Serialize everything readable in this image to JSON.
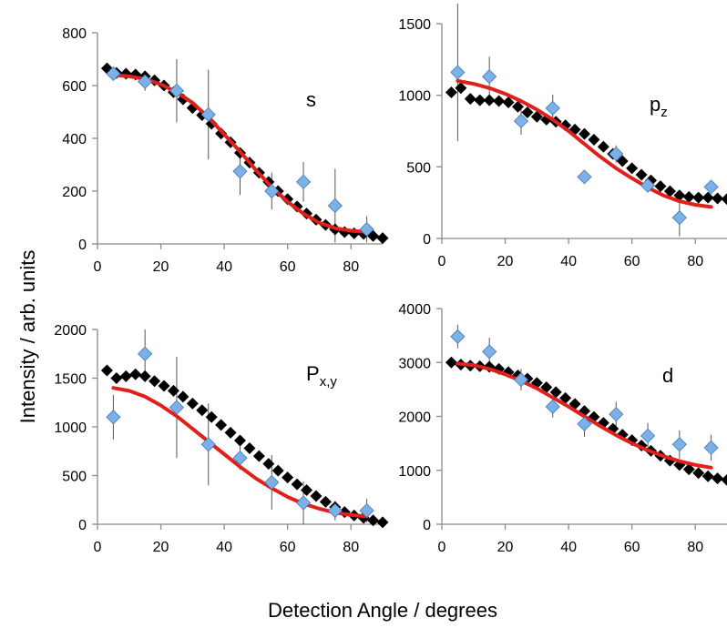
{
  "figure": {
    "ylabel": "Intensity / arb. units",
    "xlabel": "Detection Angle / degrees"
  },
  "colors": {
    "theory_black": "#000000",
    "fit_red": "#e0201a",
    "experiment_blue": "#7bb1e6",
    "experiment_blue_edge": "#3f78b5",
    "axis": "#8a8a8a"
  },
  "chart_data": [
    {
      "type": "scatter",
      "panel_label": {
        "main": "s",
        "sub": ""
      },
      "xlim": [
        0,
        90
      ],
      "ylim": [
        0,
        800
      ],
      "xticks": [
        0,
        20,
        40,
        60,
        80
      ],
      "yticks": [
        0,
        200,
        400,
        600,
        800
      ],
      "grid": false,
      "series": [
        {
          "kind": "black-diamonds",
          "x": [
            3,
            6,
            9,
            12,
            15,
            18,
            21,
            24,
            27,
            30,
            33,
            36,
            39,
            42,
            45,
            48,
            51,
            54,
            57,
            60,
            63,
            66,
            69,
            72,
            75,
            78,
            81,
            84,
            87,
            90
          ],
          "y": [
            665,
            648,
            645,
            642,
            635,
            620,
            600,
            575,
            548,
            515,
            488,
            455,
            418,
            385,
            345,
            308,
            270,
            235,
            200,
            170,
            142,
            115,
            92,
            72,
            55,
            45,
            40,
            38,
            30,
            22
          ]
        },
        {
          "kind": "red-line",
          "x": [
            5,
            10,
            15,
            20,
            25,
            30,
            35,
            40,
            45,
            50,
            55,
            60,
            65,
            70,
            75,
            80,
            85
          ],
          "y": [
            640,
            635,
            625,
            605,
            575,
            535,
            480,
            415,
            350,
            280,
            215,
            160,
            115,
            80,
            60,
            50,
            45
          ]
        },
        {
          "kind": "blue-diamonds-with-error",
          "x": [
            5,
            15,
            25,
            35,
            45,
            55,
            65,
            75,
            85
          ],
          "y": [
            645,
            615,
            580,
            490,
            275,
            200,
            235,
            145,
            55
          ],
          "err": [
            20,
            35,
            120,
            170,
            90,
            70,
            75,
            140,
            50
          ]
        }
      ]
    },
    {
      "type": "scatter",
      "panel_label": {
        "main": "p",
        "sub": "z"
      },
      "xlim": [
        0,
        90
      ],
      "ylim": [
        0,
        1500
      ],
      "xticks": [
        0,
        20,
        40,
        60,
        80
      ],
      "yticks": [
        0,
        500,
        1000,
        1500
      ],
      "grid": false,
      "series": [
        {
          "kind": "black-diamonds",
          "x": [
            3,
            6,
            9,
            12,
            15,
            18,
            21,
            24,
            27,
            30,
            33,
            36,
            39,
            42,
            45,
            48,
            51,
            54,
            57,
            60,
            63,
            66,
            69,
            72,
            75,
            78,
            81,
            84,
            87,
            90
          ],
          "y": [
            1020,
            1050,
            975,
            965,
            965,
            960,
            950,
            920,
            880,
            850,
            830,
            815,
            790,
            760,
            730,
            690,
            640,
            590,
            540,
            490,
            445,
            405,
            365,
            330,
            300,
            290,
            285,
            285,
            280,
            275
          ]
        },
        {
          "kind": "red-line",
          "x": [
            5,
            10,
            15,
            20,
            25,
            30,
            35,
            40,
            45,
            50,
            55,
            60,
            65,
            70,
            75,
            80,
            85
          ],
          "y": [
            1100,
            1080,
            1050,
            1010,
            960,
            900,
            830,
            750,
            660,
            570,
            490,
            420,
            355,
            300,
            260,
            235,
            220
          ]
        },
        {
          "kind": "blue-diamonds-with-error",
          "x": [
            5,
            15,
            25,
            35,
            45,
            55,
            65,
            75,
            85
          ],
          "y": [
            1160,
            1130,
            820,
            910,
            430,
            590,
            370,
            145,
            360
          ],
          "err": [
            480,
            140,
            95,
            95,
            40,
            60,
            45,
            130,
            40
          ]
        }
      ]
    },
    {
      "type": "scatter",
      "panel_label": {
        "main": "P",
        "sub": "x,y"
      },
      "xlim": [
        0,
        90
      ],
      "ylim": [
        0,
        2000
      ],
      "xticks": [
        0,
        20,
        40,
        60,
        80
      ],
      "yticks": [
        0,
        500,
        1000,
        1500,
        2000
      ],
      "grid": false,
      "series": [
        {
          "kind": "black-diamonds",
          "x": [
            3,
            6,
            9,
            12,
            15,
            18,
            21,
            24,
            27,
            30,
            33,
            36,
            39,
            42,
            45,
            48,
            51,
            54,
            57,
            60,
            63,
            66,
            69,
            72,
            75,
            78,
            81,
            84,
            87,
            90
          ],
          "y": [
            1580,
            1500,
            1520,
            1540,
            1520,
            1470,
            1420,
            1370,
            1310,
            1240,
            1170,
            1100,
            1020,
            940,
            860,
            780,
            700,
            620,
            550,
            480,
            410,
            350,
            290,
            230,
            175,
            125,
            90,
            65,
            40,
            20
          ]
        },
        {
          "kind": "red-line",
          "x": [
            5,
            10,
            15,
            20,
            25,
            30,
            35,
            40,
            45,
            50,
            55,
            60,
            65,
            70,
            75,
            80,
            85
          ],
          "y": [
            1400,
            1370,
            1310,
            1220,
            1110,
            980,
            850,
            720,
            590,
            470,
            370,
            280,
            210,
            160,
            120,
            95,
            80
          ]
        },
        {
          "kind": "blue-diamonds-with-error",
          "x": [
            5,
            15,
            25,
            35,
            45,
            55,
            65,
            75,
            85
          ],
          "y": [
            1100,
            1750,
            1200,
            820,
            680,
            430,
            220,
            140,
            140
          ],
          "err": [
            230,
            250,
            520,
            420,
            120,
            280,
            220,
            100,
            120
          ]
        }
      ]
    },
    {
      "type": "scatter",
      "panel_label": {
        "main": "d",
        "sub": ""
      },
      "xlim": [
        0,
        90
      ],
      "ylim": [
        0,
        4000
      ],
      "xticks": [
        0,
        20,
        40,
        60,
        80
      ],
      "yticks": [
        0,
        1000,
        2000,
        3000,
        4000
      ],
      "grid": false,
      "series": [
        {
          "kind": "black-diamonds",
          "x": [
            3,
            6,
            9,
            12,
            15,
            18,
            21,
            24,
            27,
            30,
            33,
            36,
            39,
            42,
            45,
            48,
            51,
            54,
            57,
            60,
            63,
            66,
            69,
            72,
            75,
            78,
            81,
            84,
            87,
            90
          ],
          "y": [
            3000,
            2960,
            2940,
            2930,
            2920,
            2880,
            2820,
            2760,
            2700,
            2620,
            2540,
            2450,
            2340,
            2230,
            2100,
            1990,
            1880,
            1770,
            1660,
            1560,
            1460,
            1360,
            1270,
            1180,
            1100,
            1020,
            950,
            890,
            850,
            820
          ]
        },
        {
          "kind": "red-line",
          "x": [
            5,
            10,
            15,
            20,
            25,
            30,
            35,
            40,
            45,
            50,
            55,
            60,
            65,
            70,
            75,
            80,
            85
          ],
          "y": [
            2980,
            2950,
            2880,
            2780,
            2660,
            2520,
            2350,
            2180,
            2000,
            1820,
            1650,
            1500,
            1370,
            1260,
            1170,
            1100,
            1050
          ]
        },
        {
          "kind": "blue-diamonds-with-error",
          "x": [
            5,
            15,
            25,
            35,
            45,
            55,
            65,
            75,
            85
          ],
          "y": [
            3480,
            3200,
            2680,
            2180,
            1860,
            2040,
            1640,
            1480,
            1420
          ],
          "err": [
            220,
            260,
            200,
            200,
            240,
            230,
            240,
            260,
            240
          ]
        }
      ]
    }
  ]
}
